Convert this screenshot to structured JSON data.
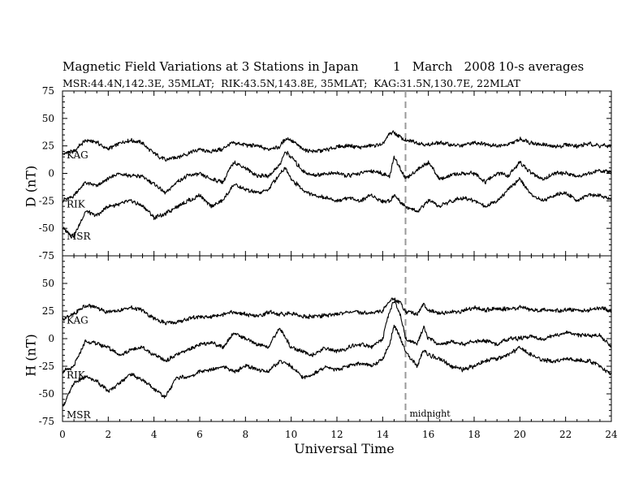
{
  "header": {
    "title": "Magnetic Field Variations at 3 Stations in Japan",
    "date": "1   March   2008",
    "averaging": "10-s averages",
    "subtitle": "MSR:44.4N,142.3E, 35MLAT;  RIK:43.5N,143.8E, 35MLAT;  KAG:31.5N,130.7E, 22MLAT"
  },
  "chart_data": [
    {
      "type": "line",
      "panel": "D",
      "ylabel": "D (nT)",
      "xlabel": "Universal Time",
      "xlim": [
        0,
        24
      ],
      "ylim": [
        -75,
        75
      ],
      "yticks": [
        -75,
        -50,
        -25,
        0,
        25,
        50,
        75
      ],
      "xticks": [
        0,
        2,
        4,
        6,
        8,
        10,
        12,
        14,
        16,
        18,
        20,
        22,
        24
      ],
      "grid": false,
      "annotations": [
        {
          "text": "",
          "x": 15,
          "style": "dashed-vertical"
        }
      ],
      "series": [
        {
          "name": "KAG",
          "x": [
            0,
            0.5,
            1,
            1.5,
            2,
            2.5,
            3,
            3.5,
            4,
            4.5,
            5,
            5.5,
            6,
            6.5,
            7,
            7.5,
            8,
            8.5,
            9,
            9.5,
            9.75,
            10,
            10.5,
            11,
            11.5,
            12,
            12.5,
            13,
            13.5,
            14,
            14.3,
            14.5,
            15,
            15.5,
            16,
            16.5,
            17,
            17.5,
            18,
            18.5,
            19,
            19.5,
            20,
            20.5,
            21,
            21.5,
            22,
            22.5,
            23,
            23.5,
            24
          ],
          "y": [
            18,
            20,
            30,
            28,
            22,
            28,
            30,
            28,
            18,
            12,
            15,
            18,
            22,
            20,
            22,
            28,
            26,
            25,
            22,
            24,
            32,
            30,
            22,
            20,
            21,
            24,
            25,
            24,
            25,
            26,
            36,
            37,
            30,
            28,
            26,
            28,
            26,
            25,
            28,
            27,
            25,
            26,
            31,
            28,
            26,
            24,
            26,
            25,
            27,
            25,
            25
          ]
        },
        {
          "name": "RIK",
          "x": [
            0,
            0.5,
            1,
            1.5,
            2,
            2.5,
            3,
            3.5,
            4,
            4.5,
            5,
            5.5,
            6,
            6.5,
            7,
            7.5,
            8,
            8.5,
            9,
            9.5,
            9.75,
            10,
            10.5,
            11,
            11.5,
            12,
            12.5,
            13,
            13.5,
            14,
            14.3,
            14.5,
            15,
            15.5,
            16,
            16.5,
            17,
            17.5,
            18,
            18.5,
            19,
            19.5,
            20,
            20.5,
            21,
            21.5,
            22,
            22.5,
            23,
            23.5,
            24
          ],
          "y": [
            -25,
            -20,
            -8,
            -12,
            -5,
            0,
            -2,
            -3,
            -10,
            -18,
            -8,
            -2,
            0,
            -5,
            -8,
            10,
            5,
            -2,
            -3,
            8,
            20,
            15,
            2,
            -2,
            0,
            0,
            -2,
            0,
            2,
            0,
            -3,
            15,
            -5,
            3,
            10,
            -5,
            -2,
            0,
            0,
            -8,
            0,
            -2,
            10,
            0,
            -5,
            0,
            0,
            -3,
            0,
            3,
            0
          ]
        },
        {
          "name": "MSR",
          "x": [
            0,
            0.5,
            1,
            1.5,
            2,
            2.5,
            3,
            3.5,
            4,
            4.5,
            5,
            5.5,
            6,
            6.5,
            7,
            7.5,
            8,
            8.5,
            9,
            9.5,
            9.75,
            10,
            10.5,
            11,
            11.5,
            12,
            12.5,
            13,
            13.5,
            14,
            14.3,
            14.5,
            15,
            15.5,
            16,
            16.5,
            17,
            17.5,
            18,
            18.5,
            19,
            19.5,
            20,
            20.5,
            21,
            21.5,
            22,
            22.5,
            23,
            23.5,
            24
          ],
          "y": [
            -50,
            -57,
            -35,
            -38,
            -30,
            -28,
            -25,
            -30,
            -40,
            -37,
            -30,
            -25,
            -20,
            -30,
            -25,
            -10,
            -15,
            -18,
            -15,
            0,
            5,
            -5,
            -15,
            -20,
            -22,
            -25,
            -22,
            -25,
            -20,
            -25,
            -25,
            -20,
            -30,
            -35,
            -25,
            -30,
            -25,
            -22,
            -25,
            -30,
            -25,
            -15,
            -5,
            -20,
            -25,
            -20,
            -18,
            -25,
            -20,
            -20,
            -23
          ]
        }
      ]
    },
    {
      "type": "line",
      "panel": "H",
      "ylabel": "H (nT)",
      "xlabel": "Universal Time",
      "xlim": [
        0,
        24
      ],
      "ylim": [
        -75,
        75
      ],
      "yticks": [
        -75,
        -50,
        -25,
        0,
        25,
        50,
        75
      ],
      "xticks": [
        0,
        2,
        4,
        6,
        8,
        10,
        12,
        14,
        16,
        18,
        20,
        22,
        24
      ],
      "grid": false,
      "annotations": [
        {
          "text": "midnight",
          "x": 15,
          "style": "dashed-vertical"
        }
      ],
      "series": [
        {
          "name": "KAG",
          "x": [
            0,
            0.5,
            1,
            1.5,
            2,
            2.5,
            3,
            3.5,
            4,
            4.5,
            5,
            5.5,
            6,
            6.5,
            7,
            7.5,
            8,
            8.5,
            9,
            9.5,
            10,
            10.5,
            11,
            11.5,
            12,
            12.5,
            13,
            13.5,
            14,
            14.3,
            14.5,
            14.8,
            15,
            15.5,
            15.8,
            16,
            16.5,
            17,
            17.5,
            18,
            18.5,
            19,
            19.5,
            20,
            20.5,
            21,
            21.5,
            22,
            22.5,
            23,
            23.5,
            24
          ],
          "y": [
            18,
            22,
            30,
            28,
            24,
            26,
            28,
            26,
            18,
            14,
            15,
            18,
            20,
            20,
            22,
            24,
            22,
            20,
            24,
            22,
            23,
            20,
            20,
            21,
            22,
            24,
            24,
            23,
            25,
            34,
            36,
            32,
            25,
            22,
            32,
            25,
            23,
            24,
            25,
            28,
            26,
            27,
            27,
            28,
            26,
            26,
            25,
            26,
            26,
            26,
            28,
            25
          ]
        },
        {
          "name": "RIK",
          "x": [
            0,
            0.5,
            1,
            1.5,
            2,
            2.5,
            3,
            3.5,
            4,
            4.5,
            5,
            5.5,
            6,
            6.5,
            7,
            7.5,
            8,
            8.5,
            9,
            9.5,
            10,
            10.5,
            11,
            11.5,
            12,
            12.5,
            13,
            13.5,
            14,
            14.3,
            14.5,
            14.8,
            15,
            15.5,
            15.8,
            16,
            16.5,
            17,
            17.5,
            18,
            18.5,
            19,
            19.5,
            20,
            20.5,
            21,
            21.5,
            22,
            22.5,
            23,
            23.5,
            24
          ],
          "y": [
            -30,
            -25,
            -2,
            -5,
            -8,
            -15,
            -10,
            -8,
            -15,
            -20,
            -15,
            -10,
            -5,
            -3,
            -8,
            5,
            0,
            -5,
            -8,
            10,
            -8,
            -12,
            -15,
            -8,
            -12,
            -8,
            -5,
            -8,
            0,
            25,
            34,
            20,
            0,
            -5,
            10,
            0,
            -5,
            -3,
            -5,
            -3,
            -2,
            -5,
            0,
            0,
            2,
            0,
            3,
            5,
            3,
            3,
            3,
            -8
          ]
        },
        {
          "name": "MSR",
          "x": [
            0,
            0.5,
            1,
            1.5,
            2,
            2.5,
            3,
            3.5,
            4,
            4.5,
            5,
            5.5,
            6,
            6.5,
            7,
            7.5,
            8,
            8.5,
            9,
            9.5,
            10,
            10.5,
            11,
            11.5,
            12,
            12.5,
            13,
            13.5,
            14,
            14.3,
            14.5,
            14.8,
            15,
            15.5,
            15.8,
            16,
            16.5,
            17,
            17.5,
            18,
            18.5,
            19,
            19.5,
            20,
            20.5,
            21,
            21.5,
            22,
            22.5,
            23,
            23.5,
            24
          ],
          "y": [
            -62,
            -40,
            -35,
            -38,
            -48,
            -40,
            -32,
            -38,
            -45,
            -53,
            -35,
            -35,
            -30,
            -28,
            -25,
            -30,
            -25,
            -28,
            -30,
            -20,
            -25,
            -35,
            -32,
            -25,
            -28,
            -25,
            -22,
            -25,
            -18,
            -5,
            12,
            0,
            -12,
            -25,
            -10,
            -15,
            -18,
            -25,
            -28,
            -25,
            -20,
            -18,
            -15,
            -8,
            -15,
            -20,
            -20,
            -18,
            -20,
            -20,
            -25,
            -32
          ]
        }
      ]
    }
  ]
}
